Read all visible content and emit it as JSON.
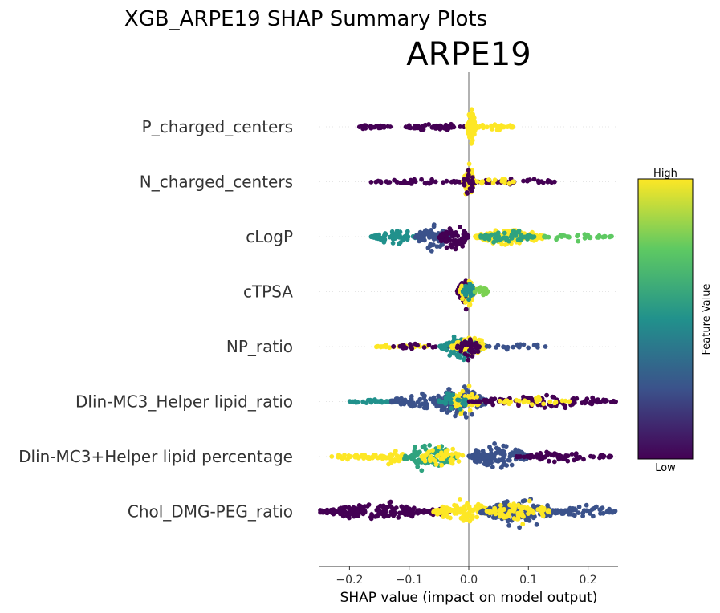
{
  "chart_data": {
    "type": "scatter",
    "subtype": "shap-beeswarm",
    "suptitle": "XGB_ARPE19 SHAP Summary Plots",
    "title": "ARPE19",
    "xlabel": "SHAP value (impact on model output)",
    "xlim": [
      -0.25,
      0.25
    ],
    "xticks": [
      -0.2,
      -0.1,
      0.0,
      0.1,
      0.2
    ],
    "xtick_labels": [
      "−0.2",
      "−0.1",
      "0.0",
      "0.1",
      "0.2"
    ],
    "colorbar": {
      "label": "Feature Value",
      "high_label": "High",
      "low_label": "Low",
      "colormap": [
        "#440154",
        "#3b528b",
        "#21918c",
        "#5ec962",
        "#fde725"
      ]
    },
    "grid": false,
    "features": [
      {
        "name": "P_charged_centers",
        "clusters": [
          {
            "min": -0.19,
            "max": -0.13,
            "count": 22,
            "color": "#440154",
            "spread": 0.2
          },
          {
            "min": -0.11,
            "max": -0.005,
            "count": 55,
            "color": "#440154",
            "spread": 0.25
          },
          {
            "min": -0.003,
            "max": 0.012,
            "count": 120,
            "color": "#fde725",
            "spread": 1.0
          },
          {
            "min": 0.012,
            "max": 0.075,
            "count": 40,
            "color": "#fde725",
            "spread": 0.3
          }
        ]
      },
      {
        "name": "N_charged_centers",
        "clusters": [
          {
            "min": -0.165,
            "max": -0.01,
            "count": 45,
            "color": "#440154",
            "spread": 0.2
          },
          {
            "min": -0.01,
            "max": 0.01,
            "count": 60,
            "color": "#fde725",
            "spread": 1.0
          },
          {
            "min": -0.01,
            "max": 0.01,
            "count": 25,
            "color": "#440154",
            "spread": 0.9
          },
          {
            "min": 0.01,
            "max": 0.15,
            "count": 35,
            "color": "#440154",
            "spread": 0.2
          },
          {
            "min": 0.01,
            "max": 0.08,
            "count": 15,
            "color": "#fde725",
            "spread": 0.2
          }
        ]
      },
      {
        "name": "cLogP",
        "clusters": [
          {
            "min": -0.165,
            "max": -0.08,
            "count": 70,
            "color": "#21918c",
            "spread": 0.45
          },
          {
            "min": -0.09,
            "max": -0.03,
            "count": 90,
            "color": "#3b528b",
            "spread": 0.8
          },
          {
            "min": -0.05,
            "max": 0.0,
            "count": 80,
            "color": "#440154",
            "spread": 0.9
          },
          {
            "min": 0.01,
            "max": 0.13,
            "count": 150,
            "color": "#fde725",
            "spread": 0.6
          },
          {
            "min": 0.02,
            "max": 0.11,
            "count": 60,
            "color": "#2fa37f",
            "spread": 0.5
          },
          {
            "min": 0.12,
            "max": 0.24,
            "count": 40,
            "color": "#5ec962",
            "spread": 0.25
          }
        ]
      },
      {
        "name": "cTPSA",
        "clusters": [
          {
            "min": -0.02,
            "max": 0.01,
            "count": 60,
            "color": "#440154",
            "spread": 1.0
          },
          {
            "min": -0.015,
            "max": 0.012,
            "count": 50,
            "color": "#fde725",
            "spread": 0.9
          },
          {
            "min": -0.01,
            "max": 0.01,
            "count": 30,
            "color": "#21918c",
            "spread": 0.7
          },
          {
            "min": 0.01,
            "max": 0.032,
            "count": 20,
            "color": "#7ad151",
            "spread": 0.4
          }
        ]
      },
      {
        "name": "NP_ratio",
        "clusters": [
          {
            "min": -0.155,
            "max": -0.07,
            "count": 25,
            "color": "#fde725",
            "spread": 0.2
          },
          {
            "min": -0.13,
            "max": -0.03,
            "count": 20,
            "color": "#440154",
            "spread": 0.25
          },
          {
            "min": -0.05,
            "max": 0.03,
            "count": 110,
            "color": "#21918c",
            "spread": 0.85
          },
          {
            "min": -0.03,
            "max": 0.03,
            "count": 60,
            "color": "#fde725",
            "spread": 0.8
          },
          {
            "min": -0.02,
            "max": 0.02,
            "count": 40,
            "color": "#440154",
            "spread": 0.8
          },
          {
            "min": 0.03,
            "max": 0.13,
            "count": 20,
            "color": "#3b528b",
            "spread": 0.2
          }
        ]
      },
      {
        "name": "Dlin-MC3_Helper lipid_ratio",
        "clusters": [
          {
            "min": -0.2,
            "max": -0.12,
            "count": 30,
            "color": "#21918c",
            "spread": 0.2
          },
          {
            "min": -0.13,
            "max": -0.03,
            "count": 70,
            "color": "#3b528b",
            "spread": 0.6
          },
          {
            "min": -0.06,
            "max": 0.03,
            "count": 150,
            "color": "#3b528b",
            "spread": 1.0
          },
          {
            "min": -0.03,
            "max": 0.02,
            "count": 50,
            "color": "#fde725",
            "spread": 0.9
          },
          {
            "min": -0.05,
            "max": 0.0,
            "count": 30,
            "color": "#21918c",
            "spread": 0.7
          },
          {
            "min": 0.0,
            "max": 0.25,
            "count": 100,
            "color": "#440154",
            "spread": 0.45
          },
          {
            "min": 0.05,
            "max": 0.17,
            "count": 25,
            "color": "#fde725",
            "spread": 0.3
          }
        ]
      },
      {
        "name": "Dlin-MC3+Helper lipid percentage",
        "clusters": [
          {
            "min": -0.23,
            "max": -0.14,
            "count": 40,
            "color": "#fde725",
            "spread": 0.25
          },
          {
            "min": -0.15,
            "max": -0.1,
            "count": 30,
            "color": "#fde725",
            "spread": 0.6
          },
          {
            "min": -0.11,
            "max": -0.02,
            "count": 90,
            "color": "#2fa37f",
            "spread": 0.85
          },
          {
            "min": -0.08,
            "max": -0.01,
            "count": 45,
            "color": "#fde725",
            "spread": 0.8
          },
          {
            "min": 0.0,
            "max": 0.1,
            "count": 130,
            "color": "#3b528b",
            "spread": 0.9
          },
          {
            "min": 0.08,
            "max": 0.24,
            "count": 70,
            "color": "#440154",
            "spread": 0.35
          }
        ]
      },
      {
        "name": "Chol_DMG-PEG_ratio",
        "clusters": [
          {
            "min": -0.25,
            "max": -0.07,
            "count": 200,
            "color": "#440154",
            "spread": 0.6
          },
          {
            "min": -0.07,
            "max": -0.03,
            "count": 30,
            "color": "#440154",
            "spread": 0.3
          },
          {
            "min": -0.06,
            "max": 0.04,
            "count": 120,
            "color": "#fde725",
            "spread": 0.7
          },
          {
            "min": 0.02,
            "max": 0.15,
            "count": 160,
            "color": "#3b528b",
            "spread": 0.9
          },
          {
            "min": 0.03,
            "max": 0.14,
            "count": 80,
            "color": "#fde725",
            "spread": 0.8
          },
          {
            "min": 0.14,
            "max": 0.25,
            "count": 60,
            "color": "#3b528b",
            "spread": 0.35
          }
        ]
      }
    ]
  }
}
